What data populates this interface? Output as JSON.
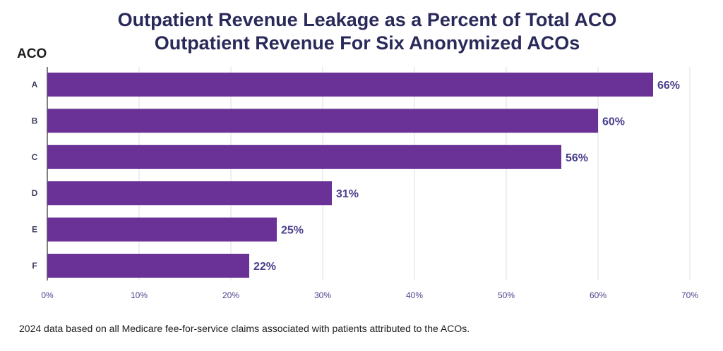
{
  "chart_data": {
    "type": "bar",
    "orientation": "horizontal",
    "title_line1": "Outpatient Revenue Leakage as a Percent of Total ACO",
    "title_line2": "Outpatient Revenue For Six Anonymized ACOs",
    "ylabel": "ACO",
    "xlabel": "",
    "categories": [
      "A",
      "B",
      "C",
      "D",
      "E",
      "F"
    ],
    "values": [
      66,
      60,
      56,
      31,
      25,
      22
    ],
    "data_labels": [
      "66%",
      "60%",
      "56%",
      "31%",
      "25%",
      "22%"
    ],
    "xlim": [
      0,
      70
    ],
    "x_ticks": [
      0,
      10,
      20,
      30,
      40,
      50,
      60,
      70
    ],
    "x_tick_labels": [
      "0%",
      "10%",
      "20%",
      "30%",
      "40%",
      "50%",
      "60%",
      "70%"
    ],
    "grid": true,
    "bar_color": "#6a3296",
    "footnote": "2024 data based on all Medicare fee-for-service claims associated with patients attributed to the ACOs."
  }
}
